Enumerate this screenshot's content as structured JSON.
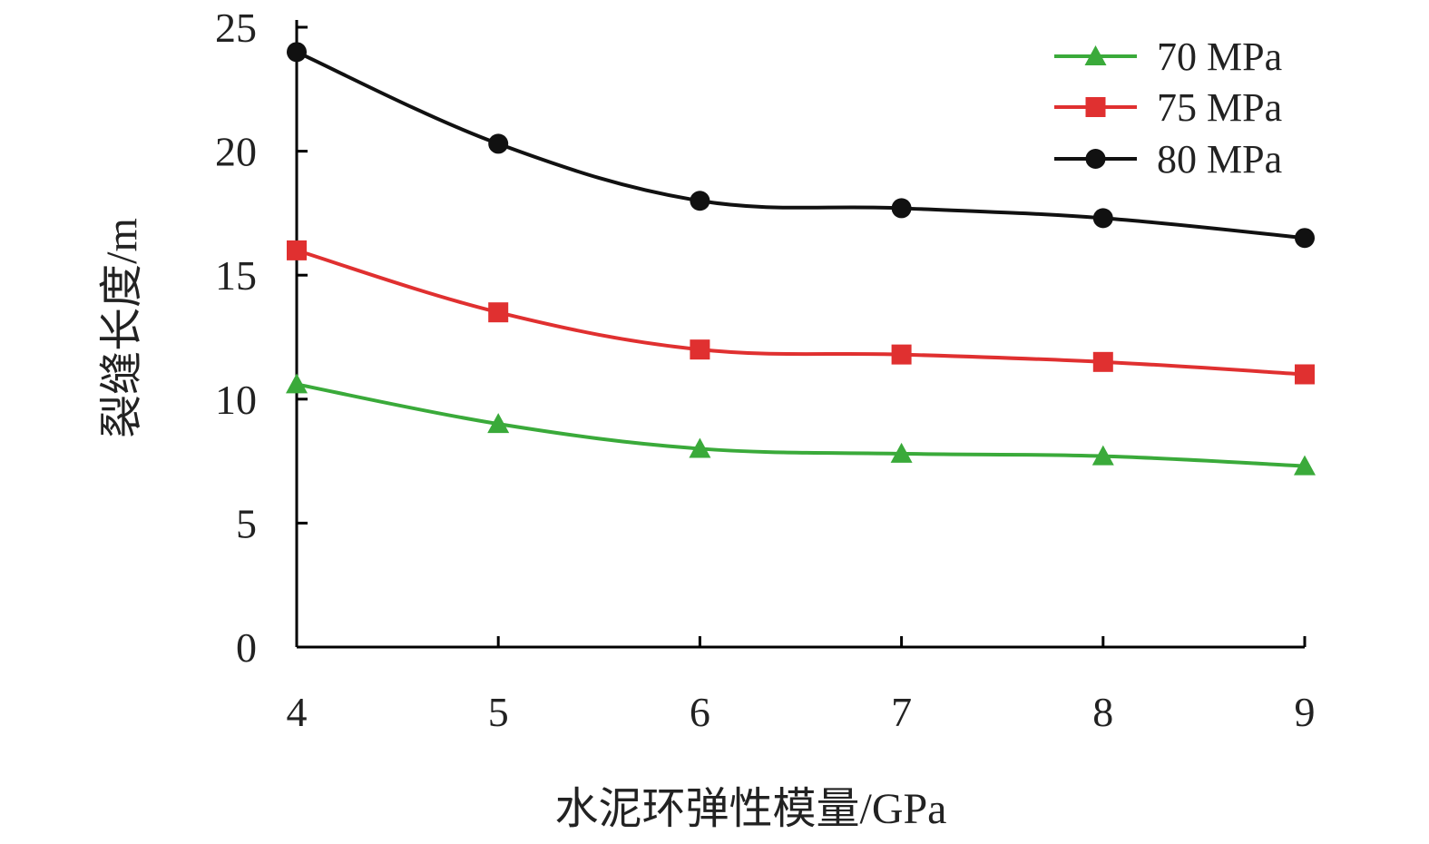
{
  "chart_data": {
    "type": "line",
    "title": "",
    "xlabel": "水泥环弹性模量/GPa",
    "ylabel": "裂缝长度/m",
    "x": [
      4,
      5,
      6,
      7,
      8,
      9
    ],
    "x_ticks": [
      "4",
      "5",
      "6",
      "7",
      "8",
      "9"
    ],
    "xlim": [
      4,
      9
    ],
    "y_ticks": [
      "0",
      "5",
      "10",
      "15",
      "20",
      "25"
    ],
    "ylim": [
      0,
      25
    ],
    "grid": false,
    "legend_position": "top-right",
    "series": [
      {
        "name": "70 MPa",
        "color": "#3aaa3a",
        "marker": "triangle",
        "values": [
          10.6,
          9.0,
          8.0,
          7.8,
          7.7,
          7.3
        ]
      },
      {
        "name": "75 MPa",
        "color": "#e03030",
        "marker": "square",
        "values": [
          16.0,
          13.5,
          12.0,
          11.8,
          11.5,
          11.0
        ]
      },
      {
        "name": "80 MPa",
        "color": "#111111",
        "marker": "circle",
        "values": [
          24.0,
          20.3,
          18.0,
          17.7,
          17.3,
          16.5
        ]
      }
    ]
  }
}
